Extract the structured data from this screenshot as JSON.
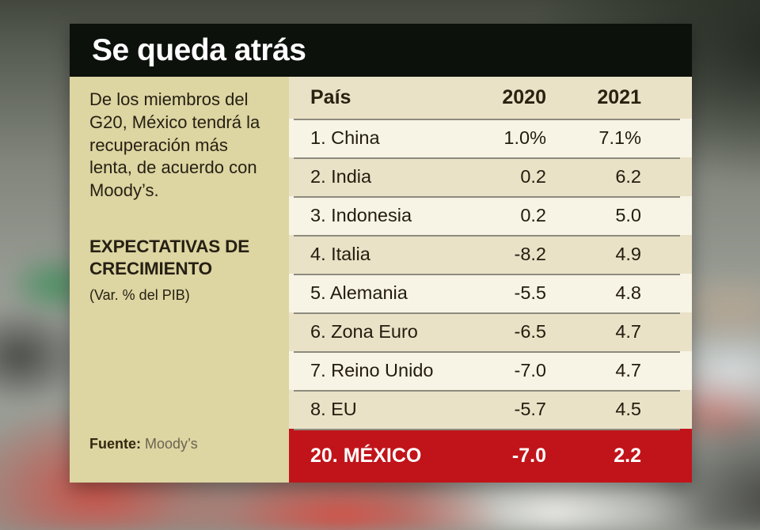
{
  "header": {
    "title": "Se queda atrás"
  },
  "sidebar": {
    "description": "De los miembros del G20, México tendrá la recuperación más lenta, de acuerdo con Moody’s.",
    "subtitle": "EXPECTATIVAS DE CRECIMIENTO",
    "unit_note": "(Var. % del PIB)",
    "source_label": "Fuente:",
    "source_value": "Moody’s"
  },
  "table": {
    "columns": {
      "country": "País",
      "y2020": "2020",
      "y2021": "2021"
    },
    "rows": [
      {
        "country": "1. China",
        "y2020": "1.0%",
        "y2021": "7.1%"
      },
      {
        "country": "2. India",
        "y2020": "0.2",
        "y2021": "6.2"
      },
      {
        "country": "3. Indonesia",
        "y2020": "0.2",
        "y2021": "5.0"
      },
      {
        "country": "4. Italia",
        "y2020": "-8.2",
        "y2021": "4.9"
      },
      {
        "country": "5. Alemania",
        "y2020": "-5.5",
        "y2021": "4.8"
      },
      {
        "country": "6. Zona Euro",
        "y2020": "-6.5",
        "y2021": "4.7"
      },
      {
        "country": "7. Reino Unido",
        "y2020": "-7.0",
        "y2021": "4.7"
      },
      {
        "country": "8. EU",
        "y2020": "-5.7",
        "y2021": "4.5"
      }
    ],
    "highlight_row": {
      "country": "20. MÉXICO",
      "y2020": "-7.0",
      "y2021": "2.2"
    }
  },
  "colors": {
    "header_black": "#0d110c",
    "sidebar_beige": "#ddd5a2",
    "row_light": "#f7f4e5",
    "row_dark": "#e9e2c7",
    "accent_red": "#c1141a",
    "separator": "#8d8b7d"
  },
  "chart_data": {
    "type": "table",
    "title": "Se queda atrás",
    "subtitle": "EXPECTATIVAS DE CRECIMIENTO (Var. % del PIB)",
    "columns": [
      "País",
      "2020",
      "2021"
    ],
    "rows": [
      [
        "1. China",
        1.0,
        7.1
      ],
      [
        "2. India",
        0.2,
        6.2
      ],
      [
        "3. Indonesia",
        0.2,
        5.0
      ],
      [
        "4. Italia",
        -8.2,
        4.9
      ],
      [
        "5. Alemania",
        -5.5,
        4.8
      ],
      [
        "6. Zona Euro",
        -6.5,
        4.7
      ],
      [
        "7. Reino Unido",
        -7.0,
        4.7
      ],
      [
        "8. EU",
        -5.7,
        4.5
      ],
      [
        "20. MÉXICO",
        -7.0,
        2.2
      ]
    ],
    "highlighted_row": "20. MÉXICO",
    "units": "Var. % del PIB",
    "source": "Moody’s"
  }
}
